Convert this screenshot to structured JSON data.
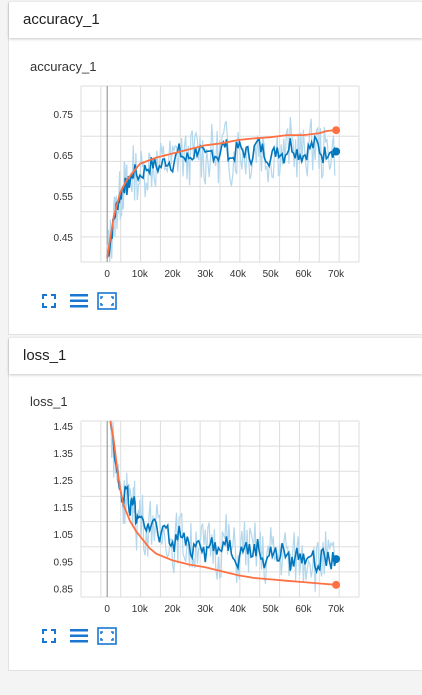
{
  "colors": {
    "smoothed": "#ff7043",
    "raw": "#0277bd",
    "raw_faint": "#b3d7ec",
    "icon": "#1976d2",
    "grid": "#dddddd",
    "axis": "#888888"
  },
  "toolbar_icons": [
    "fit-expand-icon",
    "toggle-log-icon",
    "fit-domain-icon"
  ],
  "cards": [
    {
      "header": "accuracy_1",
      "chart_data": {
        "type": "line",
        "title": "accuracy_1",
        "xlabel": "",
        "ylabel": "",
        "xlim": [
          -8000,
          77000
        ],
        "ylim": [
          0.39,
          0.82
        ],
        "x_ticks": [
          0,
          10000,
          20000,
          30000,
          40000,
          50000,
          60000,
          70000
        ],
        "x_tick_labels": [
          "0",
          "10k",
          "20k",
          "30k",
          "40k",
          "50k",
          "60k",
          "70k"
        ],
        "y_ticks": [
          0.45,
          0.55,
          0.65,
          0.75
        ],
        "y_tick_labels": [
          "0.45",
          "0.55",
          "0.65",
          "0.75"
        ],
        "grid": true,
        "series": [
          {
            "role": "smoothed",
            "x": [
              0,
              1000,
              2000,
              3000,
              4000,
              6000,
              8000,
              10000,
              15000,
              20000,
              25000,
              30000,
              35000,
              40000,
              45000,
              50000,
              55000,
              60000,
              65000,
              67000,
              70000
            ],
            "y": [
              0.4,
              0.45,
              0.5,
              0.53,
              0.56,
              0.59,
              0.61,
              0.63,
              0.645,
              0.655,
              0.665,
              0.675,
              0.68,
              0.688,
              0.692,
              0.695,
              0.7,
              0.7,
              0.705,
              0.71,
              0.712
            ]
          },
          {
            "role": "raw",
            "x": [
              0,
              1000,
              2000,
              3000,
              4000,
              5000,
              6000,
              7000,
              8000,
              10000,
              12000,
              14000,
              16000,
              18000,
              20000,
              22000,
              24000,
              26000,
              28000,
              30000,
              32000,
              34000,
              36000,
              38000,
              40000,
              42000,
              44000,
              46000,
              48000,
              50000,
              52000,
              54000,
              56000,
              58000,
              60000,
              62000,
              64000,
              66000,
              68000,
              70000
            ],
            "y": [
              0.4,
              0.44,
              0.49,
              0.53,
              0.55,
              0.58,
              0.57,
              0.59,
              0.61,
              0.6,
              0.62,
              0.63,
              0.62,
              0.64,
              0.63,
              0.66,
              0.64,
              0.65,
              0.67,
              0.64,
              0.66,
              0.65,
              0.68,
              0.64,
              0.67,
              0.66,
              0.65,
              0.68,
              0.66,
              0.64,
              0.67,
              0.65,
              0.68,
              0.66,
              0.65,
              0.67,
              0.68,
              0.65,
              0.67,
              0.66
            ]
          }
        ]
      }
    },
    {
      "header": "loss_1",
      "chart_data": {
        "type": "line",
        "title": "loss_1",
        "xlabel": "",
        "ylabel": "",
        "xlim": [
          -8000,
          77000
        ],
        "ylim": [
          0.82,
          1.47
        ],
        "x_ticks": [
          0,
          10000,
          20000,
          30000,
          40000,
          50000,
          60000,
          70000
        ],
        "x_tick_labels": [
          "0",
          "10k",
          "20k",
          "30k",
          "40k",
          "50k",
          "60k",
          "70k"
        ],
        "y_ticks": [
          0.85,
          0.95,
          1.05,
          1.15,
          1.25,
          1.35,
          1.45
        ],
        "y_tick_labels": [
          "0.85",
          "0.95",
          "1.05",
          "1.15",
          "1.25",
          "1.35",
          "1.45"
        ],
        "grid": true,
        "series": [
          {
            "role": "smoothed",
            "x": [
              1000,
              2000,
              3000,
              4000,
              5000,
              7000,
              9000,
              11000,
              13000,
              15000,
              20000,
              25000,
              30000,
              35000,
              40000,
              45000,
              50000,
              55000,
              60000,
              65000,
              70000
            ],
            "y": [
              1.47,
              1.4,
              1.3,
              1.22,
              1.16,
              1.1,
              1.06,
              1.03,
              1.0,
              0.98,
              0.955,
              0.94,
              0.93,
              0.915,
              0.9,
              0.89,
              0.885,
              0.88,
              0.875,
              0.87,
              0.865
            ]
          },
          {
            "role": "raw",
            "x": [
              1000,
              2000,
              3000,
              4000,
              5000,
              6000,
              7000,
              8000,
              9000,
              10000,
              12000,
              14000,
              16000,
              18000,
              20000,
              22000,
              24000,
              26000,
              28000,
              30000,
              32000,
              34000,
              36000,
              38000,
              40000,
              42000,
              44000,
              46000,
              48000,
              50000,
              52000,
              54000,
              56000,
              58000,
              60000,
              62000,
              64000,
              66000,
              68000,
              70000
            ],
            "y": [
              1.47,
              1.36,
              1.28,
              1.22,
              1.16,
              1.24,
              1.13,
              1.19,
              1.09,
              1.14,
              1.06,
              1.12,
              1.03,
              1.08,
              1.0,
              1.06,
              1.02,
              0.99,
              1.05,
              0.98,
              1.03,
              0.97,
              1.04,
              1.0,
              0.96,
              1.02,
              0.98,
              1.01,
              0.95,
              0.99,
              0.97,
              1.0,
              0.94,
              0.98,
              0.96,
              0.99,
              0.93,
              0.97,
              0.95,
              0.96
            ]
          }
        ]
      }
    }
  ]
}
